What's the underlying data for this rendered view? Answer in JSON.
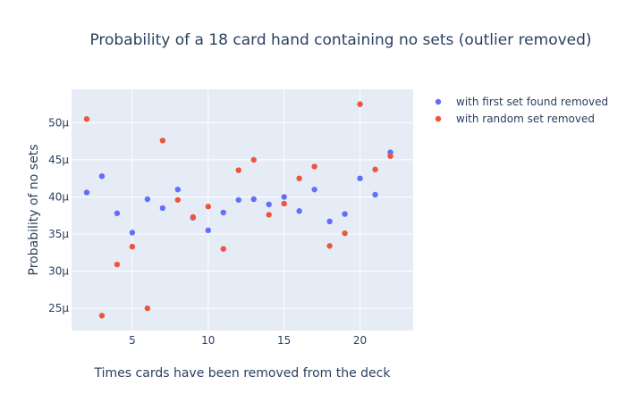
{
  "chart_data": {
    "type": "scatter",
    "title": "Probability of a 18 card hand containing no sets (outlier removed)",
    "xlabel": "Times cards have been removed from the deck",
    "ylabel": "Probability of no sets",
    "xlim": [
      1.0,
      23.5
    ],
    "ylim": [
      22.0,
      54.5
    ],
    "y_unit_suffix": "μ",
    "x_ticks": [
      5,
      10,
      15,
      20
    ],
    "y_ticks": [
      25,
      30,
      35,
      40,
      45,
      50
    ],
    "grid": true,
    "legend_position": "top-right",
    "series": [
      {
        "name": "with first set found removed",
        "color": "#636efa",
        "x": [
          2,
          3,
          4,
          5,
          6,
          7,
          8,
          9,
          10,
          11,
          12,
          13,
          14,
          15,
          16,
          17,
          18,
          19,
          20,
          21,
          22
        ],
        "y": [
          40.6,
          42.8,
          37.8,
          35.2,
          39.7,
          38.5,
          41.0,
          37.2,
          35.5,
          37.9,
          39.6,
          39.7,
          39.0,
          40.0,
          38.1,
          41.0,
          36.7,
          37.7,
          42.5,
          40.3,
          46.0
        ]
      },
      {
        "name": "with random set removed",
        "color": "#ef553b",
        "x": [
          2,
          3,
          4,
          5,
          6,
          7,
          8,
          9,
          10,
          11,
          12,
          13,
          14,
          15,
          16,
          17,
          18,
          19,
          20,
          21,
          22
        ],
        "y": [
          50.5,
          24.0,
          30.9,
          33.3,
          25.0,
          47.6,
          39.6,
          37.3,
          38.7,
          33.0,
          43.6,
          45.0,
          37.6,
          39.1,
          42.5,
          44.1,
          33.4,
          35.1,
          52.5,
          43.7,
          45.5
        ]
      }
    ]
  }
}
